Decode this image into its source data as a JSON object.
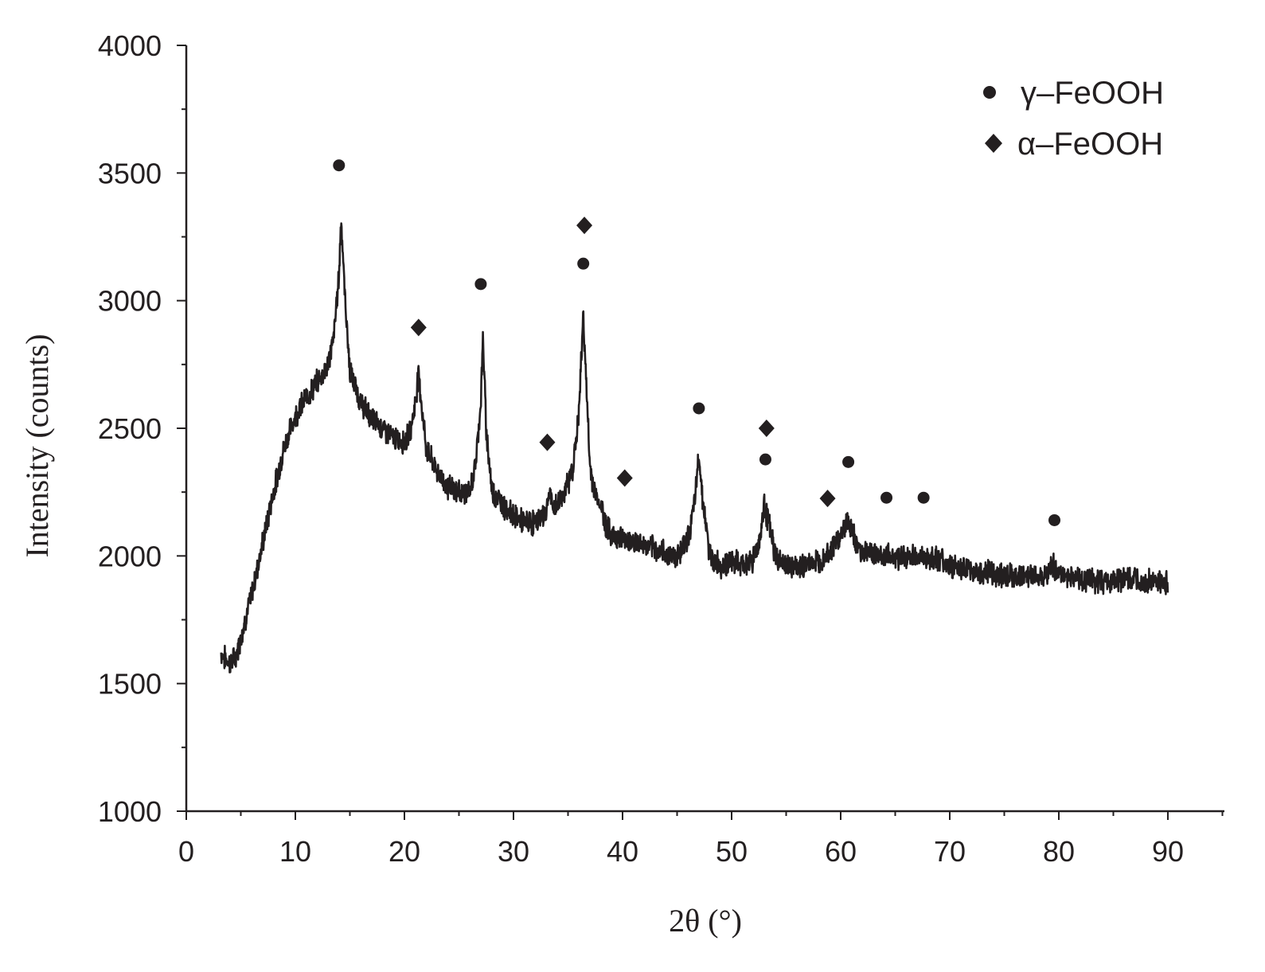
{
  "chart_data": {
    "type": "line",
    "title": "",
    "xlabel": "2θ (°)",
    "ylabel": "Intensity (counts)",
    "xlim": [
      0,
      95
    ],
    "ylim": [
      1000,
      4000
    ],
    "xticks": [
      0,
      10,
      20,
      30,
      40,
      50,
      60,
      70,
      80,
      90
    ],
    "yticks": [
      1000,
      1500,
      2000,
      2500,
      3000,
      3500,
      4000
    ],
    "x_minor_step": 5,
    "y_minor_step": 250,
    "grid": false,
    "legend_position": "top-right",
    "line_color": "#231f20",
    "legend": [
      {
        "marker": "circle",
        "label": "γ–FeOOH"
      },
      {
        "marker": "diamond",
        "label": "α–FeOOH"
      }
    ],
    "series": [
      {
        "x": [
          3.2,
          3.5,
          4,
          4.5,
          5,
          6,
          7,
          8,
          9,
          10,
          11,
          12,
          13,
          13.5,
          14,
          14.2,
          14.5,
          15,
          16,
          17,
          18,
          19,
          20,
          20.5,
          21,
          21.3,
          21.6,
          22,
          23,
          24,
          25,
          26,
          26.5,
          27,
          27.2,
          27.5,
          28,
          29,
          30,
          31,
          32,
          33,
          33.3,
          33.6,
          34,
          35,
          35.5,
          36,
          36.4,
          36.7,
          37,
          37.5,
          38,
          38.5,
          39,
          40,
          42,
          44,
          45,
          46,
          46.6,
          47,
          47.4,
          48,
          49,
          50,
          51,
          52,
          52.6,
          53,
          53.4,
          54,
          55,
          56,
          57,
          58,
          59,
          60,
          60.6,
          61,
          61.5,
          62,
          63,
          64,
          65,
          66,
          67,
          68,
          69,
          70,
          72,
          74,
          76,
          78,
          79,
          79.5,
          80,
          81,
          82,
          84,
          86,
          88,
          90
        ],
        "y": [
          1620,
          1600,
          1580,
          1600,
          1680,
          1850,
          2050,
          2250,
          2430,
          2550,
          2620,
          2680,
          2750,
          2850,
          3100,
          3330,
          3050,
          2720,
          2600,
          2540,
          2500,
          2460,
          2450,
          2480,
          2600,
          2720,
          2580,
          2420,
          2330,
          2270,
          2250,
          2250,
          2350,
          2600,
          2850,
          2500,
          2260,
          2200,
          2160,
          2130,
          2130,
          2170,
          2260,
          2180,
          2200,
          2280,
          2360,
          2560,
          2950,
          2650,
          2350,
          2240,
          2200,
          2120,
          2080,
          2070,
          2040,
          2010,
          2000,
          2070,
          2200,
          2400,
          2200,
          2000,
          1960,
          1980,
          1960,
          1990,
          2070,
          2200,
          2130,
          2000,
          1960,
          1950,
          1970,
          1980,
          2020,
          2080,
          2140,
          2100,
          2040,
          2020,
          2010,
          2000,
          2000,
          1990,
          2000,
          1990,
          1990,
          1960,
          1940,
          1930,
          1920,
          1920,
          1940,
          1960,
          1930,
          1920,
          1910,
          1900,
          1910,
          1900,
          1890
        ]
      }
    ],
    "markers": [
      {
        "phase": "γ–FeOOH",
        "shape": "circle",
        "x": 14.0,
        "y": 3530
      },
      {
        "phase": "α–FeOOH",
        "shape": "diamond",
        "x": 21.3,
        "y": 2895
      },
      {
        "phase": "γ–FeOOH",
        "shape": "circle",
        "x": 27.0,
        "y": 3065
      },
      {
        "phase": "α–FeOOH",
        "shape": "diamond",
        "x": 33.1,
        "y": 2445
      },
      {
        "phase": "α–FeOOH",
        "shape": "diamond",
        "x": 36.5,
        "y": 3295
      },
      {
        "phase": "γ–FeOOH",
        "shape": "circle",
        "x": 36.4,
        "y": 3145
      },
      {
        "phase": "α–FeOOH",
        "shape": "diamond",
        "x": 40.2,
        "y": 2305
      },
      {
        "phase": "γ–FeOOH",
        "shape": "circle",
        "x": 47.0,
        "y": 2578
      },
      {
        "phase": "α–FeOOH",
        "shape": "diamond",
        "x": 53.2,
        "y": 2500
      },
      {
        "phase": "γ–FeOOH",
        "shape": "circle",
        "x": 53.1,
        "y": 2378
      },
      {
        "phase": "α–FeOOH",
        "shape": "diamond",
        "x": 58.8,
        "y": 2225
      },
      {
        "phase": "γ–FeOOH",
        "shape": "circle",
        "x": 60.7,
        "y": 2368
      },
      {
        "phase": "γ–FeOOH",
        "shape": "circle",
        "x": 64.2,
        "y": 2228
      },
      {
        "phase": "γ–FeOOH",
        "shape": "circle",
        "x": 67.6,
        "y": 2228
      },
      {
        "phase": "γ–FeOOH",
        "shape": "circle",
        "x": 79.6,
        "y": 2140
      }
    ]
  }
}
